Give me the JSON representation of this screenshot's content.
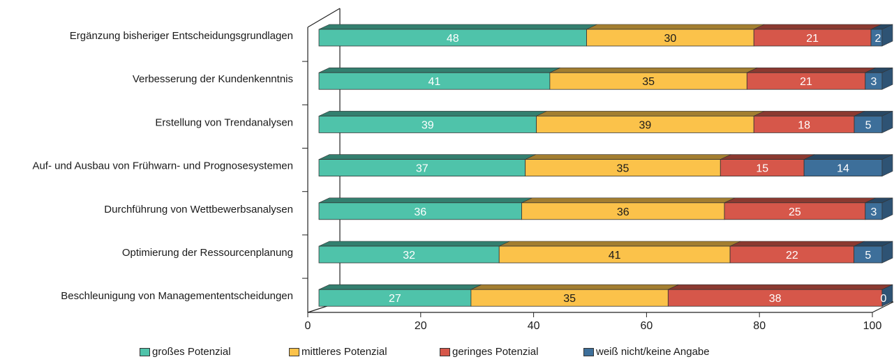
{
  "chart_data": {
    "type": "bar",
    "orientation": "horizontal",
    "stacked": true,
    "categories": [
      "Ergänzung bisheriger Entscheidungsgrundlagen",
      "Verbesserung der Kundenkenntnis",
      "Erstellung von Trendanalysen",
      "Auf- und Ausbau von Frühwarn- und Prognosesystemen",
      "Durchführung von Wettbewerbsanalysen",
      "Optimierung der Ressourcenplanung",
      "Beschleunigung von Managemententscheidungen"
    ],
    "series": [
      {
        "name": "großes Potenzial",
        "color": "#4fc3aa",
        "values": [
          48,
          41,
          39,
          37,
          36,
          32,
          27
        ]
      },
      {
        "name": "mittleres Potenzial",
        "color": "#fbc24a",
        "values": [
          30,
          35,
          39,
          35,
          36,
          41,
          35
        ]
      },
      {
        "name": "geringes Potenzial",
        "color": "#d6574a",
        "values": [
          21,
          21,
          18,
          15,
          25,
          22,
          38
        ]
      },
      {
        "name": "weiß nicht/keine Angabe",
        "color": "#3d6f9a",
        "values": [
          2,
          3,
          5,
          14,
          3,
          5,
          0
        ]
      }
    ],
    "xticks": [
      "0",
      "20",
      "40",
      "60",
      "80",
      "100"
    ],
    "xlim": [
      0,
      100
    ],
    "legend_position": "bottom",
    "grid": false
  }
}
